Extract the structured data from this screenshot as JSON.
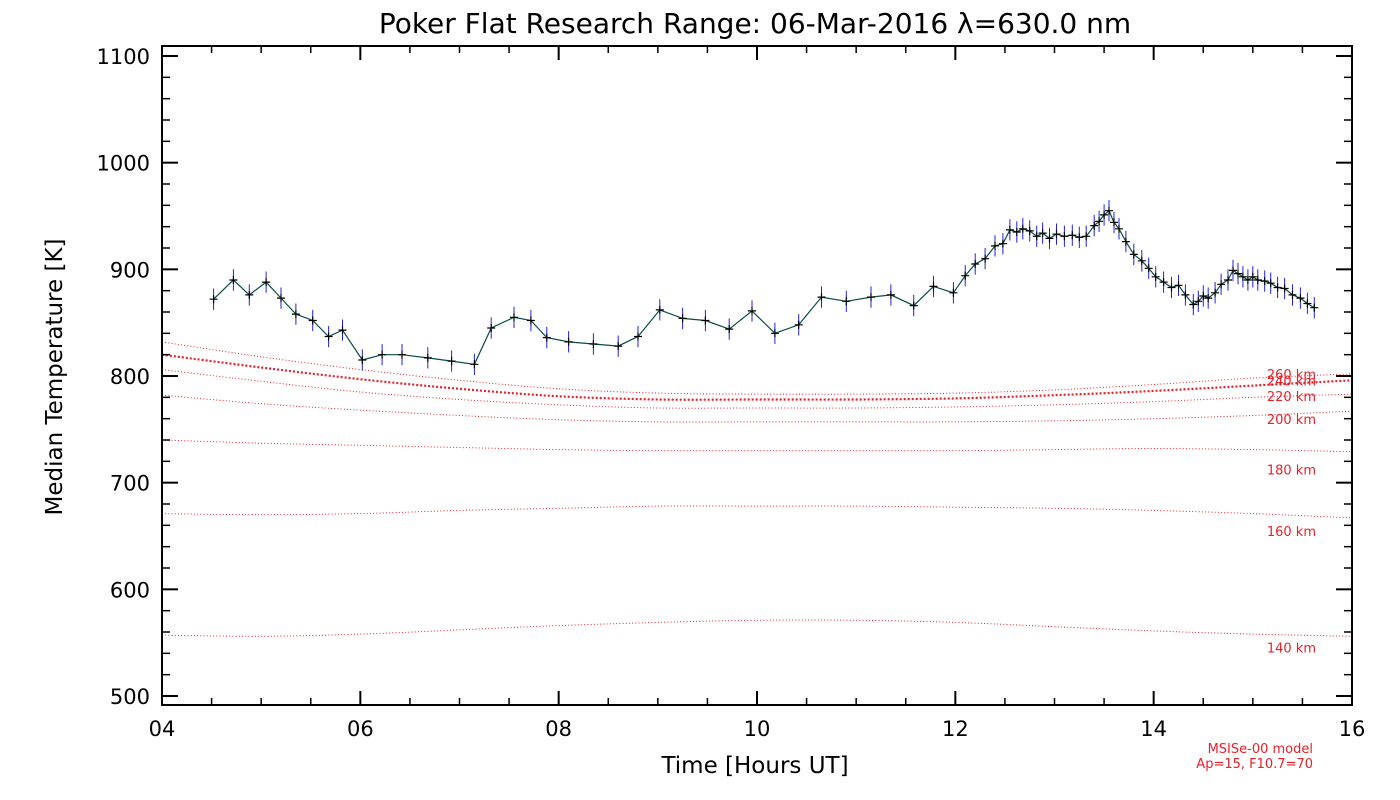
{
  "chart_data": {
    "type": "line",
    "title": "Poker Flat Research Range: 06-Mar-2016 λ=630.0 nm",
    "xlabel": "Time [Hours UT]",
    "ylabel": "Median Temperature [K]",
    "xlim": [
      4,
      16
    ],
    "ylim": [
      500,
      1100
    ],
    "xticks": [
      4,
      6,
      8,
      10,
      12,
      14,
      16
    ],
    "xtick_labels": [
      "04",
      "06",
      "08",
      "10",
      "12",
      "14",
      "16"
    ],
    "yticks": [
      500,
      600,
      700,
      800,
      900,
      1000,
      1100
    ],
    "ytick_labels": [
      "500",
      "600",
      "700",
      "800",
      "900",
      "1000",
      "1100"
    ],
    "grid": false,
    "colors": {
      "measurement_line": "#0a4a4a",
      "error_bars": "#2222dd",
      "markers": "#000000",
      "model": "#e8202a"
    },
    "series": [
      {
        "name": "Median temperature",
        "style": "solid line with plus markers and vertical error bars",
        "x": [
          4.52,
          4.72,
          4.88,
          5.05,
          5.2,
          5.35,
          5.52,
          5.68,
          5.82,
          6.02,
          6.22,
          6.42,
          6.68,
          6.92,
          7.15,
          7.32,
          7.55,
          7.72,
          7.88,
          8.1,
          8.35,
          8.6,
          8.8,
          9.02,
          9.25,
          9.48,
          9.72,
          9.95,
          10.18,
          10.42,
          10.65,
          10.9,
          11.15,
          11.35,
          11.58,
          11.78,
          11.98,
          12.1,
          12.2,
          12.3,
          12.4,
          12.48,
          12.55,
          12.62,
          12.68,
          12.75,
          12.82,
          12.88,
          12.95,
          13.02,
          13.1,
          13.18,
          13.25,
          13.32,
          13.4,
          13.45,
          13.5,
          13.55,
          13.6,
          13.65,
          13.72,
          13.8,
          13.88,
          13.95,
          14.02,
          14.1,
          14.18,
          14.25,
          14.32,
          14.4,
          14.45,
          14.5,
          14.55,
          14.62,
          14.68,
          14.75,
          14.8,
          14.85,
          14.9,
          14.95,
          15.0,
          15.05,
          15.12,
          15.18,
          15.25,
          15.32,
          15.4,
          15.48,
          15.55,
          15.62
        ],
        "values": [
          872,
          890,
          876,
          888,
          873,
          858,
          852,
          837,
          843,
          815,
          820,
          820,
          817,
          814,
          811,
          845,
          855,
          852,
          836,
          832,
          830,
          828,
          837,
          862,
          854,
          852,
          844,
          861,
          840,
          848,
          874,
          870,
          874,
          876,
          866,
          884,
          878,
          894,
          905,
          910,
          922,
          924,
          937,
          935,
          938,
          936,
          931,
          934,
          929,
          933,
          931,
          932,
          930,
          931,
          941,
          945,
          951,
          955,
          944,
          938,
          926,
          914,
          908,
          901,
          893,
          888,
          883,
          885,
          876,
          867,
          870,
          875,
          873,
          878,
          886,
          890,
          899,
          896,
          893,
          890,
          893,
          890,
          889,
          887,
          883,
          882,
          876,
          873,
          868,
          864
        ],
        "error_bars": "±10 K"
      },
      {
        "name": "MSISe-00 model",
        "style": "red dotted lines",
        "x": [
          4,
          5,
          6,
          7,
          8,
          9,
          10,
          11,
          12,
          13,
          14,
          15,
          16
        ],
        "altitudes": [
          {
            "label": "140 km",
            "values": [
              557,
              556,
              558,
              562,
              566,
              569,
              571,
              571,
              569,
              565,
              561,
              558,
              556
            ]
          },
          {
            "label": "160 km",
            "values": [
              671,
              670,
              671,
              674,
              676,
              678,
              678,
              678,
              677,
              676,
              674,
              671,
              667
            ]
          },
          {
            "label": "180 km",
            "values": [
              740,
              737,
              735,
              733,
              731,
              730,
              730,
              730,
              730,
              731,
              732,
              731,
              729
            ]
          },
          {
            "label": "200 km",
            "values": [
              782,
              774,
              768,
              763,
              759,
              757,
              757,
              757,
              757,
              758,
              760,
              763,
              767
            ]
          },
          {
            "label": "220 km",
            "values": [
              806,
              795,
              785,
              778,
              773,
              770,
              770,
              770,
              771,
              773,
              776,
              780,
              783
            ]
          },
          {
            "label": "240 km",
            "values": [
              820,
              808,
              797,
              788,
              781,
              778,
              778,
              778,
              779,
              782,
              786,
              791,
              796
            ]
          },
          {
            "label": "260 km",
            "values": [
              832,
              818,
              806,
              796,
              788,
              784,
              783,
              783,
              784,
              787,
              792,
              798,
              802
            ]
          }
        ]
      }
    ],
    "annotations": [
      "MSISe-00 model",
      "Ap=15, F10.7=70"
    ]
  }
}
